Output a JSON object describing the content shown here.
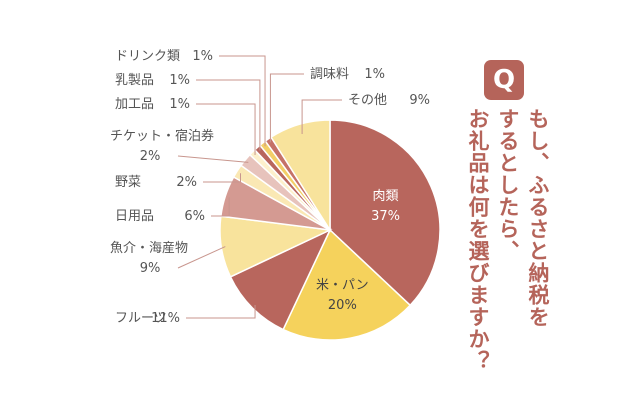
{
  "colors": {
    "accent": "#b5645a",
    "text": "#555555",
    "leader": "#c8968e"
  },
  "badge": {
    "letter": "Q"
  },
  "question": {
    "lines": [
      "もし、ふるさと納税を",
      "するとしたら、",
      "お礼品は何を選びますか？"
    ]
  },
  "chart_data": {
    "type": "pie",
    "title": "",
    "series": [
      {
        "values": [
          37,
          20,
          11,
          9,
          6,
          2,
          2,
          1,
          1,
          1,
          1,
          9
        ]
      }
    ],
    "slices": [
      {
        "name": "肉類",
        "value": 37,
        "label": "37%",
        "color": "#b8665d"
      },
      {
        "name": "米・パン",
        "value": 20,
        "label": "20%",
        "color": "#f5d25c"
      },
      {
        "name": "フルーツ",
        "value": 11,
        "label": "11%",
        "color": "#b8665d"
      },
      {
        "name": "魚介・海産物",
        "value": 9,
        "label": "9%",
        "color": "#f8e39c"
      },
      {
        "name": "日用品",
        "value": 6,
        "label": "6%",
        "color": "#d49a92"
      },
      {
        "name": "野菜",
        "value": 2,
        "label": "2%",
        "color": "#fae8b4"
      },
      {
        "name": "チケット・宿泊券",
        "value": 2,
        "label": "2%",
        "color": "#e7c3bc"
      },
      {
        "name": "加工品",
        "value": 1,
        "label": "1%",
        "color": "#fdf1cc"
      },
      {
        "name": "乳製品",
        "value": 1,
        "label": "1%",
        "color": "#b8665d"
      },
      {
        "name": "ドリンク類",
        "value": 1,
        "label": "1%",
        "color": "#f3cf68"
      },
      {
        "name": "調味料",
        "value": 1,
        "label": "1%",
        "color": "#c57268"
      },
      {
        "name": "その他",
        "value": 9,
        "label": "9%",
        "color": "#f8e39c"
      }
    ]
  }
}
